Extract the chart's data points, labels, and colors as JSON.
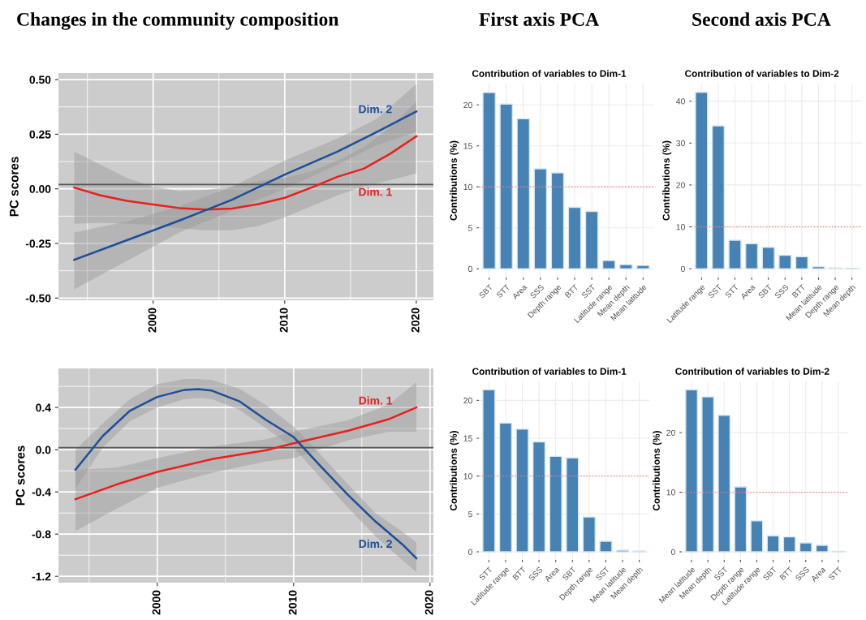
{
  "chart_data": [
    {
      "type": "line",
      "title": "Changes in the community composition",
      "ylabel": "PC scores",
      "xlim": [
        1992.8,
        2021.3
      ],
      "ylim": [
        -0.51,
        0.53
      ],
      "xticks": [
        2000,
        2010,
        2020
      ],
      "yticks": [
        {
          "value": 0.5,
          "label": "0.50"
        },
        {
          "value": 0.25,
          "label": "0.25"
        },
        {
          "value": 0,
          "label": "0.00"
        },
        {
          "value": -0.25,
          "label": "-0.25"
        },
        {
          "value": -0.5,
          "label": "-0.50"
        }
      ],
      "grid": true,
      "ref_lines": [
        {
          "axis": "y",
          "value": 0.02,
          "color": "#555555"
        }
      ],
      "series": [
        {
          "name": "Dim. 1",
          "color": "#e8211d",
          "x": [
            1994,
            1996,
            1998,
            2000,
            2002,
            2004,
            2006,
            2008,
            2010,
            2012,
            2014,
            2016,
            2018,
            2020
          ],
          "values": [
            0.006,
            -0.03,
            -0.055,
            -0.072,
            -0.088,
            -0.095,
            -0.09,
            -0.07,
            -0.041,
            0.005,
            0.055,
            0.092,
            0.16,
            0.24
          ],
          "lower": [
            -0.16,
            -0.155,
            -0.16,
            -0.165,
            -0.18,
            -0.19,
            -0.19,
            -0.17,
            -0.13,
            -0.08,
            -0.03,
            0.01,
            0.04,
            0.07
          ],
          "upper": [
            0.17,
            0.11,
            0.05,
            0.01,
            -0.01,
            -0.005,
            0.01,
            0.035,
            0.05,
            0.08,
            0.13,
            0.19,
            0.28,
            0.4
          ]
        },
        {
          "name": "Dim. 2",
          "color": "#1c4f9c",
          "x": [
            1994,
            1998,
            2002,
            2006,
            2010,
            2014,
            2017,
            2020
          ],
          "values": [
            -0.325,
            -0.235,
            -0.145,
            -0.05,
            0.065,
            0.17,
            0.26,
            0.354
          ],
          "lower": [
            -0.46,
            -0.33,
            -0.2,
            -0.1,
            0.0,
            0.11,
            0.2,
            0.26
          ],
          "upper": [
            -0.2,
            -0.15,
            -0.08,
            0.01,
            0.13,
            0.23,
            0.32,
            0.48
          ]
        }
      ]
    },
    {
      "type": "bar",
      "subtitle": "First axis PCA",
      "title": "Contribution of variables to Dim-1",
      "ylabel": "Contributions (%)",
      "categories": [
        "SBT",
        "STT",
        "Area",
        "SSS",
        "Depth range",
        "BTT",
        "SST",
        "Latitude range",
        "Mean depth",
        "Mean latitude"
      ],
      "values": [
        21.5,
        20.1,
        18.3,
        12.2,
        11.7,
        7.5,
        7.0,
        1.0,
        0.5,
        0.4
      ],
      "color": "#4682b4",
      "ylim": [
        -1.07,
        22.6
      ],
      "yticks": [
        0,
        5,
        10,
        15,
        20
      ],
      "grid": true,
      "ref_lines": [
        {
          "axis": "y",
          "value": 10,
          "color": "#ff8080",
          "line_style": "dotted"
        }
      ]
    },
    {
      "type": "bar",
      "subtitle": "Second axis PCA",
      "title": "Contribution of variables to Dim-2",
      "ylabel": "Contributions (%)",
      "categories": [
        "Latitude range",
        "SST",
        "STT",
        "Area",
        "SBT",
        "SSS",
        "BTT",
        "Mean latitude",
        "Depth range",
        "Mean depth"
      ],
      "values": [
        42.1,
        34.1,
        6.8,
        6.0,
        5.1,
        3.2,
        2.9,
        0.5,
        0.2,
        0.1
      ],
      "color": "#4682b4",
      "ylim": [
        -2.1,
        44.2
      ],
      "yticks": [
        0,
        10,
        20,
        30,
        40
      ],
      "grid": true,
      "ref_lines": [
        {
          "axis": "y",
          "value": 10,
          "color": "#ff8080",
          "line_style": "dotted"
        }
      ]
    },
    {
      "type": "line",
      "ylabel": "PC scores",
      "xlim": [
        1992.75,
        2020.25
      ],
      "ylim": [
        -1.26,
        0.77
      ],
      "xticks": [
        2000,
        2010,
        2020
      ],
      "yticks": [
        0.4,
        {
          "value": 0,
          "label": "0.0"
        },
        -0.4,
        -0.8,
        -1.2
      ],
      "grid": true,
      "ref_lines": [
        {
          "axis": "y",
          "value": 0.02,
          "color": "#555555"
        }
      ],
      "series": [
        {
          "name": "Dim. 1",
          "color": "#e8211d",
          "x": [
            1994,
            1997,
            2000,
            2004,
            2008,
            2010,
            2014,
            2017,
            2019
          ],
          "values": [
            -0.47,
            -0.33,
            -0.21,
            -0.09,
            -0.005,
            0.06,
            0.18,
            0.29,
            0.4
          ],
          "lower": [
            -0.77,
            -0.56,
            -0.36,
            -0.22,
            -0.11,
            -0.08,
            0.09,
            0.17,
            0.17
          ],
          "upper": [
            -0.19,
            -0.17,
            -0.08,
            0.03,
            0.1,
            0.17,
            0.28,
            0.43,
            0.64
          ]
        },
        {
          "name": "Dim. 2",
          "color": "#1c4f9c",
          "x": [
            1994,
            1996,
            1998,
            2000,
            2002,
            2003,
            2004,
            2006,
            2008,
            2010,
            2012,
            2014,
            2016,
            2018,
            2019
          ],
          "values": [
            -0.19,
            0.13,
            0.37,
            0.5,
            0.567,
            0.574,
            0.56,
            0.46,
            0.28,
            0.12,
            -0.16,
            -0.43,
            -0.68,
            -0.9,
            -1.03
          ],
          "lower": [
            -0.37,
            0.02,
            0.27,
            0.4,
            0.48,
            0.49,
            0.48,
            0.38,
            0.2,
            0.02,
            -0.27,
            -0.55,
            -0.82,
            -1.05,
            -1.16
          ],
          "upper": [
            0.0,
            0.25,
            0.48,
            0.62,
            0.67,
            0.67,
            0.66,
            0.58,
            0.42,
            0.22,
            -0.05,
            -0.33,
            -0.6,
            -0.78,
            -0.88
          ]
        }
      ]
    },
    {
      "type": "bar",
      "title": "Contribution of variables to Dim-1",
      "ylabel": "Contributions (%)",
      "categories": [
        "STT",
        "Latitude range",
        "BTT",
        "SSS",
        "Area",
        "SBT",
        "Depth range",
        "SST",
        "Mean latitude",
        "Mean depth"
      ],
      "values": [
        21.4,
        17.0,
        16.2,
        14.5,
        12.6,
        12.4,
        4.6,
        1.4,
        0.2,
        0.1
      ],
      "color": "#4682b4",
      "ylim": [
        -1.07,
        22.5
      ],
      "yticks": [
        0,
        5,
        10,
        15,
        20
      ],
      "grid": true,
      "ref_lines": [
        {
          "axis": "y",
          "value": 10,
          "color": "#ff8080",
          "line_style": "dotted"
        }
      ]
    },
    {
      "type": "bar",
      "title": "Contribution of variables to Dim-2",
      "ylabel": "Contributions (%)",
      "categories": [
        "Mean latitude",
        "Mean depth",
        "SST",
        "Depth range",
        "Latitude range",
        "SBT",
        "BTT",
        "SSS",
        "Area",
        "STT"
      ],
      "values": [
        27.2,
        26.0,
        22.9,
        10.9,
        5.2,
        2.7,
        2.5,
        1.5,
        1.1,
        0.1
      ],
      "color": "#4682b4",
      "ylim": [
        -1.36,
        28.6
      ],
      "yticks": [
        0,
        10,
        20
      ],
      "grid": true,
      "ref_lines": [
        {
          "axis": "y",
          "value": 10,
          "color": "#ff8080",
          "line_style": "dotted"
        }
      ]
    }
  ]
}
